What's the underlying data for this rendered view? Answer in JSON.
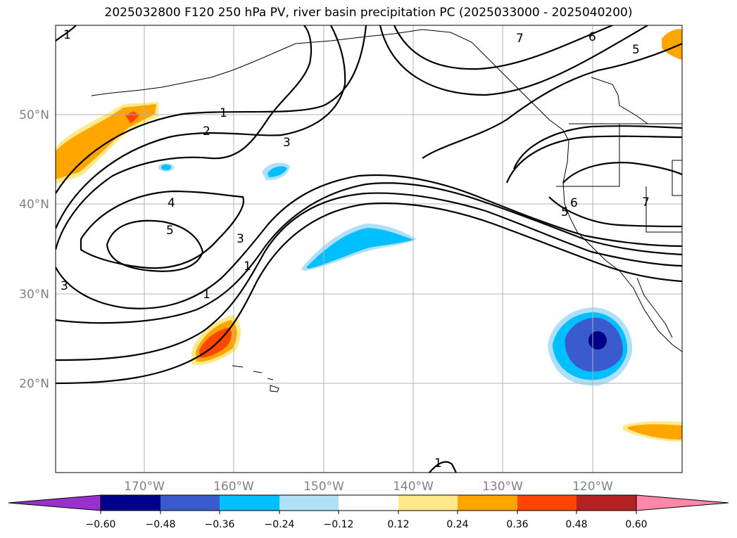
{
  "title": "2025032800 F120 250 hPa PV, river basin precipitation PC (2025033000 - 2025040200)",
  "map": {
    "lon_ticks": [
      "170°W",
      "160°W",
      "150°W",
      "140°W",
      "130°W",
      "120°W"
    ],
    "lat_ticks": [
      "50°N",
      "40°N",
      "30°N",
      "20°N"
    ],
    "contour_labels": [
      "1",
      "1",
      "1",
      "2",
      "3",
      "3",
      "3",
      "4",
      "5",
      "5",
      "5",
      "6",
      "6",
      "7",
      "7",
      "1",
      "1"
    ]
  },
  "colorbar": {
    "ticks": [
      "−0.60",
      "−0.48",
      "−0.36",
      "−0.24",
      "−0.12",
      "0.12",
      "0.24",
      "0.36",
      "0.48",
      "0.60"
    ],
    "colors": [
      "#9932CC",
      "#00008B",
      "#3A5BCD",
      "#00BFFF",
      "#B0E0F8",
      "#FFFFFF",
      "#FFE98A",
      "#FFA500",
      "#FF4500",
      "#B22222",
      "#FF88AA"
    ]
  },
  "colors": {
    "background": "#FFFFFF",
    "grid": "#B0B0B0",
    "contour": "#000000",
    "tick_label": "#808080"
  }
}
